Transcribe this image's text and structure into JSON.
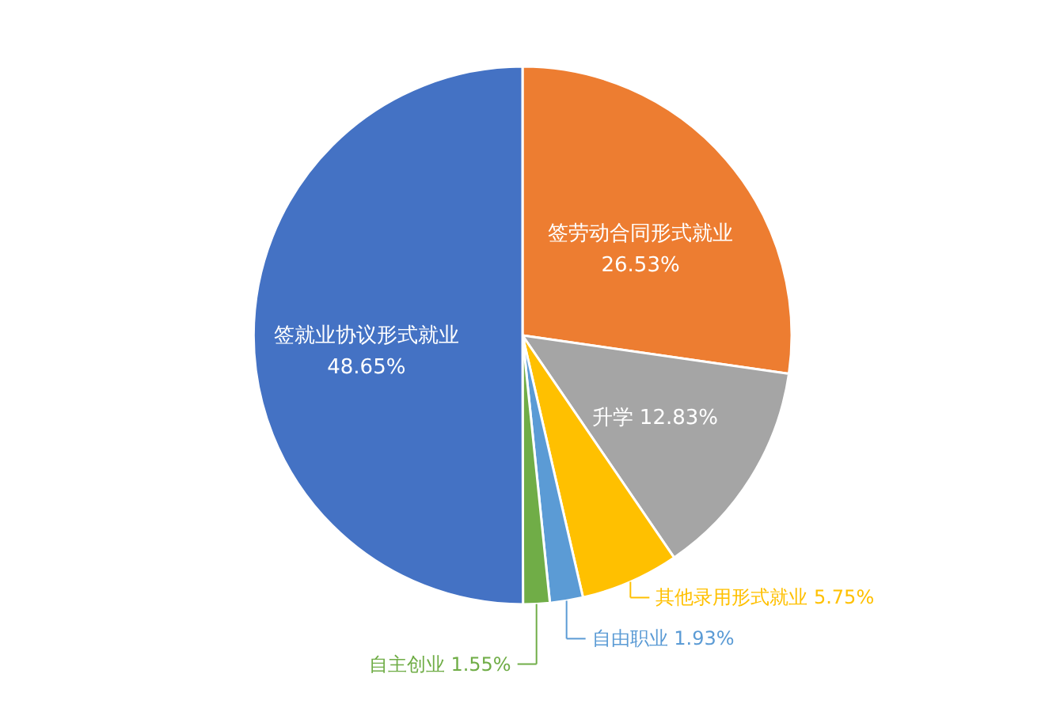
{
  "chart_data": {
    "type": "pie",
    "categories": [
      "签劳动合同形式就业",
      "升学",
      "其他录用形式就业",
      "自由职业",
      "自主创业",
      "签就业协议形式就业"
    ],
    "values": [
      26.53,
      12.83,
      5.75,
      1.93,
      1.55,
      48.65
    ],
    "colors": [
      "#ed7d31",
      "#a5a5a5",
      "#ffc000",
      "#5b9bd5",
      "#70ad47",
      "#4472c4"
    ],
    "value_labels": [
      "26.53%",
      "12.83%",
      "5.75%",
      "1.93%",
      "1.55%",
      "48.65%"
    ]
  }
}
